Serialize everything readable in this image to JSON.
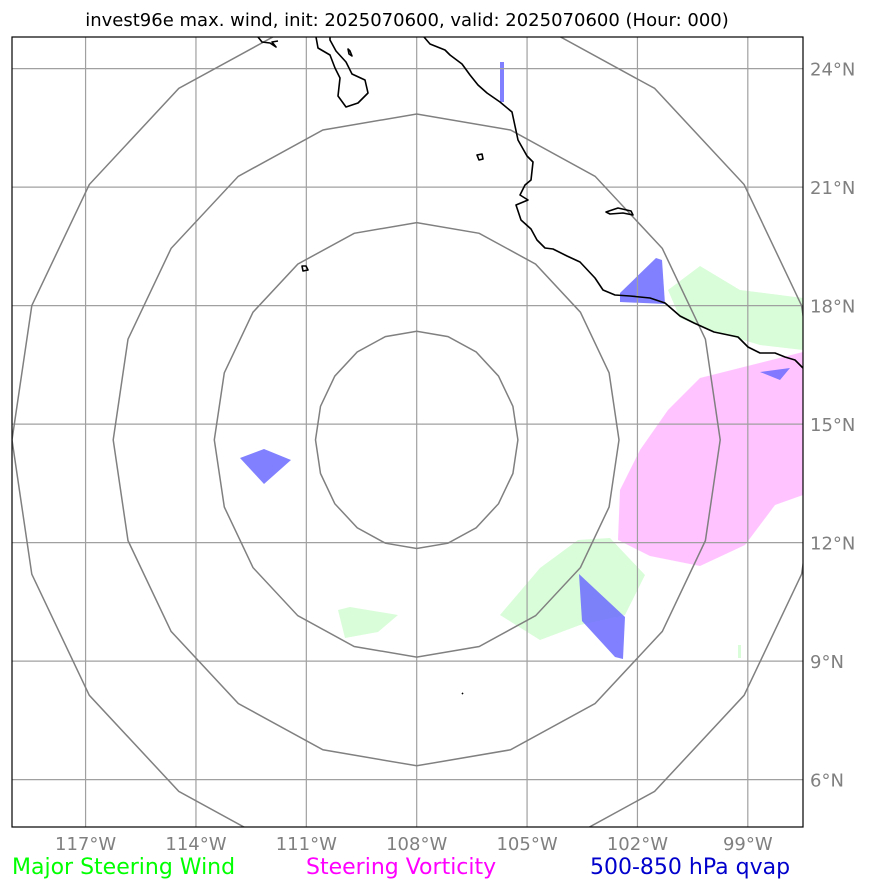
{
  "title": "invest96e max. wind, init: 2025070600, valid: 2025070600 (Hour: 000)",
  "map": {
    "lon_range": [
      -119,
      -97.5
    ],
    "lat_range": [
      4.8,
      24.8
    ],
    "lon_ticks": [
      {
        "value": -117,
        "label": "117°W"
      },
      {
        "value": -114,
        "label": "114°W"
      },
      {
        "value": -111,
        "label": "111°W"
      },
      {
        "value": -108,
        "label": "108°W"
      },
      {
        "value": -105,
        "label": "105°W"
      },
      {
        "value": -102,
        "label": "102°W"
      },
      {
        "value": -99,
        "label": "99°W"
      }
    ],
    "lat_ticks": [
      {
        "value": 24,
        "label": "24°N"
      },
      {
        "value": 21,
        "label": "21°N"
      },
      {
        "value": 18,
        "label": "18°N"
      },
      {
        "value": 15,
        "label": "15°N"
      },
      {
        "value": 12,
        "label": "12°N"
      },
      {
        "value": 9,
        "label": "9°N"
      },
      {
        "value": 6,
        "label": "6°N"
      }
    ],
    "storm_center": {
      "lon": -108,
      "lat": 14.6
    },
    "range_rings_deg": [
      2.75,
      5.5,
      8.25,
      11.0
    ]
  },
  "legend": {
    "steering_wind": {
      "label": "Major Steering Wind",
      "color": "#00ff00"
    },
    "vorticity": {
      "label": "Steering Vorticity",
      "color": "#ff00ff"
    },
    "qvap": {
      "label": "500-850 hPa qvap",
      "color": "#0000cc"
    }
  },
  "colors": {
    "steering_wind_fill": "#d9fdd9",
    "vorticity_fill": "#ffc4ff",
    "qvap_fill": "#6b6bff"
  }
}
